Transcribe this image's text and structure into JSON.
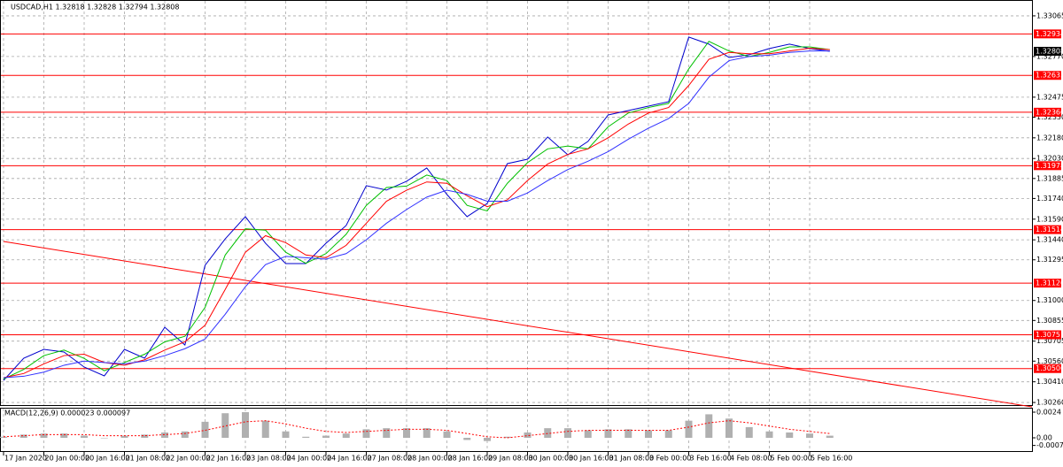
{
  "chart_data": [
    {
      "type": "line",
      "title": "USDCAD,H1 1.32818 1.32828 1.32794 1.32808",
      "categories": [
        "17 Jan 2020",
        null,
        "20 Jan 00:00",
        null,
        "20 Jan 16:00",
        null,
        "21 Jan 08:00",
        null,
        "22 Jan 00:00",
        null,
        "22 Jan 16:00",
        null,
        "23 Jan 08:00",
        null,
        "24 Jan 00:00",
        null,
        "24 Jan 16:00",
        null,
        "27 Jan 08:00",
        null,
        "28 Jan 00:00",
        null,
        "28 Jan 16:00",
        null,
        "29 Jan 08:00",
        null,
        "30 Jan 00:00",
        null,
        "30 Jan 16:00",
        null,
        "31 Jan 08:00",
        null,
        "3 Feb 00:00",
        null,
        "3 Feb 16:00",
        null,
        "4 Feb 08:00",
        null,
        "5 Feb 00:00",
        null,
        "5 Feb 16:00",
        null
      ],
      "series": [
        {
          "color": "#0000cd",
          "values": [
            1.3042,
            1.30581,
            1.30645,
            1.30626,
            1.30517,
            1.30453,
            1.30645,
            1.30581,
            1.30806,
            1.30677,
            1.31255,
            1.31447,
            1.31608,
            1.31415,
            1.31268,
            1.31268,
            1.31415,
            1.31544,
            1.31833,
            1.31801,
            1.31865,
            1.31961,
            1.31769,
            1.31608,
            1.31704,
            1.31993,
            1.32025,
            1.32186,
            1.32057,
            1.32154,
            1.32346,
            1.32378,
            1.3241,
            1.32442,
            1.32911,
            1.3286,
            1.32763,
            1.32783,
            1.32828,
            1.3286,
            1.32828,
            1.32808
          ]
        },
        {
          "color": "#00c000",
          "values": [
            1.3043,
            1.305,
            1.306,
            1.3064,
            1.3058,
            1.3049,
            1.3055,
            1.3061,
            1.307,
            1.3074,
            1.3095,
            1.3133,
            1.3152,
            1.3151,
            1.3135,
            1.3127,
            1.3134,
            1.3148,
            1.3169,
            1.3182,
            1.3183,
            1.3191,
            1.3187,
            1.3169,
            1.3165,
            1.3185,
            1.32,
            1.321,
            1.3212,
            1.321,
            1.3226,
            1.3236,
            1.324,
            1.3243,
            1.3268,
            1.3288,
            1.3281,
            1.3277,
            1.328,
            1.3284,
            1.3284,
            1.3282
          ]
        },
        {
          "color": "#ff0000",
          "values": [
            1.3044,
            1.3047,
            1.3054,
            1.306,
            1.3061,
            1.3055,
            1.3053,
            1.3057,
            1.3064,
            1.307,
            1.3082,
            1.3108,
            1.3135,
            1.3147,
            1.3142,
            1.3133,
            1.3131,
            1.314,
            1.3156,
            1.3172,
            1.318,
            1.3186,
            1.3185,
            1.3176,
            1.3168,
            1.3173,
            1.3187,
            1.3199,
            1.3206,
            1.321,
            1.3218,
            1.3228,
            1.3236,
            1.324,
            1.3256,
            1.3275,
            1.328,
            1.3279,
            1.3279,
            1.3281,
            1.3283,
            1.3282
          ]
        },
        {
          "color": "#3030ff",
          "values": [
            1.3044,
            1.3045,
            1.3048,
            1.3053,
            1.3056,
            1.3055,
            1.3054,
            1.3056,
            1.306,
            1.3065,
            1.3072,
            1.309,
            1.311,
            1.3126,
            1.3132,
            1.3131,
            1.313,
            1.3134,
            1.3144,
            1.3156,
            1.3166,
            1.3175,
            1.318,
            1.3177,
            1.3172,
            1.3172,
            1.3178,
            1.3187,
            1.3195,
            1.3201,
            1.3208,
            1.3217,
            1.3225,
            1.3232,
            1.3243,
            1.3262,
            1.3274,
            1.3277,
            1.3278,
            1.328,
            1.3281,
            1.3281
          ]
        }
      ],
      "levels": {
        "color": "#ff0000",
        "values": [
          1.32934,
          1.32633,
          1.32366,
          1.31978,
          1.31514,
          1.31126,
          1.30751,
          1.30506
        ]
      },
      "current_price": 1.32808,
      "trend_line": {
        "color": "#ff0000",
        "values": [
          1.31428,
          1.30228
        ]
      },
      "ylim": [
        1.30241,
        1.3318
      ],
      "yticks": [
        {
          "value": 1.3026,
          "label": "1.30260"
        },
        {
          "value": 1.3041,
          "label": "1.30410"
        },
        {
          "value": 1.3056,
          "label": "1.30560"
        },
        1.30705,
        1.30855,
        {
          "value": 1.31,
          "label": "1.31000"
        },
        1.31295,
        {
          "value": 1.3144,
          "label": "1.31440"
        },
        {
          "value": 1.3159,
          "label": "1.31590"
        },
        {
          "value": 1.3174,
          "label": "1.31740"
        },
        1.31885,
        {
          "value": 1.3203,
          "label": "1.32030"
        },
        {
          "value": 1.3218,
          "label": "1.32180"
        },
        {
          "value": 1.3233,
          "label": "1.32330"
        },
        1.32475,
        {
          "value": 1.3277,
          "label": "1.32770"
        },
        1.33065
      ],
      "grid": true
    },
    {
      "type": "macd",
      "title": "MACD(12,26,9) 0.000023 0.000097",
      "series": [
        {
          "type": "bar",
          "color": "#b0b0b0",
          "values": [
            0.0001,
            0.0003,
            0.0004,
            0.0004,
            0.0002,
            0.0,
            0.0002,
            0.0003,
            0.0005,
            0.0006,
            0.0015,
            0.0023,
            0.0024,
            0.0016,
            0.0006,
            0.0001,
            0.0002,
            0.0004,
            0.0008,
            0.0009,
            0.0009,
            0.0009,
            0.0006,
            -0.0002,
            -0.0003,
            0.0001,
            0.0005,
            0.0009,
            0.0009,
            0.0007,
            0.0008,
            0.0008,
            0.0007,
            0.0007,
            0.0016,
            0.0022,
            0.0018,
            0.001,
            0.0006,
            0.0005,
            0.0004,
            0.0002
          ]
        },
        {
          "type": "line",
          "color": "#ff0000",
          "values": [
            0.0001,
            0.0002,
            0.0003,
            0.0003,
            0.0003,
            0.0002,
            0.0002,
            0.0002,
            0.0003,
            0.0004,
            0.0007,
            0.0011,
            0.0015,
            0.0016,
            0.0013,
            0.0009,
            0.0006,
            0.0005,
            0.0006,
            0.0007,
            0.0008,
            0.0008,
            0.0007,
            0.0004,
            0.0001,
            0.0,
            0.0002,
            0.0004,
            0.0006,
            0.0007,
            0.0007,
            0.0007,
            0.0007,
            0.0007,
            0.001,
            0.0014,
            0.0016,
            0.0014,
            0.0011,
            0.0008,
            0.0006,
            0.0004
          ]
        }
      ],
      "ylim": [
        -0.00124,
        0.00273
      ],
      "yticks": [
        -0.000713,
        {
          "value": 0,
          "label": "0.00"
        },
        0.0024
      ]
    }
  ]
}
